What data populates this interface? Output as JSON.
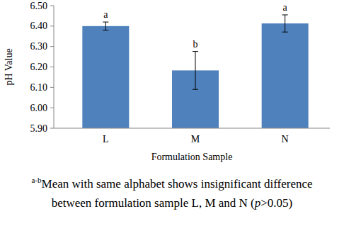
{
  "chart_data": {
    "type": "bar",
    "x_label": "Formulation Sample",
    "y_label": "pH Value",
    "categories": [
      "L",
      "M",
      "N"
    ],
    "values": [
      6.4,
      6.183,
      6.413
    ],
    "errors": [
      0.02,
      0.093,
      0.042
    ],
    "significance": [
      "a",
      "b",
      "a"
    ],
    "color": "#4f81bd",
    "ylim": [
      5.9,
      6.5
    ],
    "yticks": [
      {
        "value": 5.9,
        "label": "5.90"
      },
      {
        "value": 6.0,
        "label": "6.00"
      },
      {
        "value": 6.1,
        "label": "6.10"
      },
      {
        "value": 6.2,
        "label": "6.20"
      },
      {
        "value": 6.3,
        "label": "6.30"
      },
      {
        "value": 6.4,
        "label": "6.40"
      },
      {
        "value": 6.5,
        "label": "6.50"
      }
    ],
    "grid": false,
    "note": {
      "superscript": "a-b",
      "line1": "Mean with same alphabet shows insignificant difference",
      "line2_start": "between formulation sample L, M and N (",
      "line2_italic": "p",
      "line2_end": ">0.05)"
    }
  }
}
